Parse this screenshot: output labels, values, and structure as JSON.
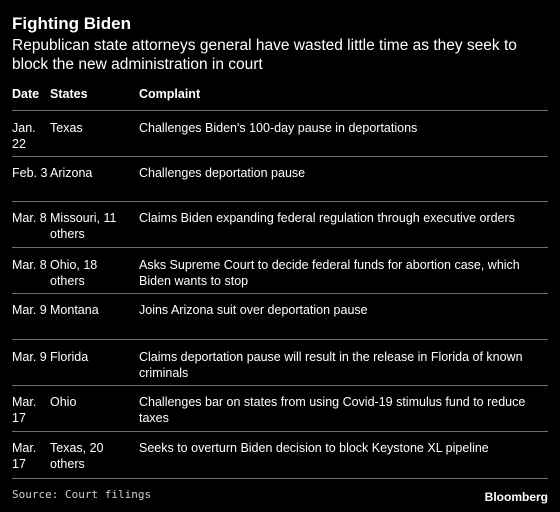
{
  "title": "Fighting Biden",
  "subtitle": "Republican state attorneys general have wasted little time as they seek to block the new administration in court",
  "table": {
    "headers": [
      "Date",
      "States",
      "Complaint"
    ],
    "rows": [
      {
        "date": "Jan. 22",
        "states": "Texas",
        "complaint": "Challenges Biden's 100-day pause in deportations"
      },
      {
        "date": "Feb. 3",
        "states": "Arizona",
        "complaint": "Challenges deportation pause"
      },
      {
        "date": "Mar. 8",
        "states": "Missouri, 11 others",
        "complaint": "Claims Biden expanding federal regulation through executive orders"
      },
      {
        "date": "Mar. 8",
        "states": "Ohio, 18 others",
        "complaint": "Asks Supreme Court to decide federal funds for abortion case, which Biden wants to stop"
      },
      {
        "date": "Mar. 9",
        "states": "Montana",
        "complaint": "Joins Arizona suit over deportation pause"
      },
      {
        "date": "Mar. 9",
        "states": "Florida",
        "complaint": "Claims deportation pause will result in the release in Florida of known criminals"
      },
      {
        "date": "Mar. 17",
        "states": "Ohio",
        "complaint": "Challenges bar on states from using Covid-19 stimulus fund to reduce taxes"
      },
      {
        "date": "Mar. 17",
        "states": "Texas, 20 others",
        "complaint": "Seeks to overturn Biden decision to block Keystone XL pipeline"
      }
    ]
  },
  "source": "Source: Court filings",
  "brand": "Bloomberg"
}
